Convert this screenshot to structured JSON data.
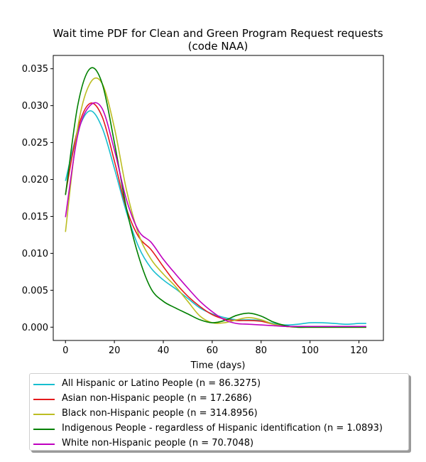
{
  "chart_data": {
    "type": "line",
    "title": "Wait time PDF for Clean and Green Program Request  requests\n(code NAA)",
    "xlabel": "Time (days)",
    "ylabel": "",
    "xlim": [
      -5,
      130
    ],
    "ylim": [
      -0.0018,
      0.0368
    ],
    "x_ticks": [
      0,
      20,
      40,
      60,
      80,
      100,
      120
    ],
    "y_ticks": [
      0.0,
      0.005,
      0.01,
      0.015,
      0.02,
      0.025,
      0.03,
      0.035
    ],
    "y_tick_labels": [
      "0.000",
      "0.005",
      "0.010",
      "0.015",
      "0.020",
      "0.025",
      "0.030",
      "0.035"
    ],
    "grid": false,
    "legend_position": "below",
    "series": [
      {
        "name": "All Hispanic or Latino People (n = 86.3275)",
        "color": "#17becf",
        "x": [
          0,
          5,
          10,
          15,
          20,
          25,
          30,
          35,
          40,
          45,
          50,
          55,
          60,
          65,
          70,
          75,
          80,
          85,
          90,
          95,
          100,
          105,
          110,
          115,
          120,
          123
        ],
        "y": [
          0.0198,
          0.0265,
          0.0293,
          0.027,
          0.0215,
          0.0155,
          0.0108,
          0.008,
          0.0064,
          0.0052,
          0.0039,
          0.0026,
          0.0018,
          0.0013,
          0.001,
          0.001,
          0.0009,
          0.0005,
          0.0003,
          0.0004,
          0.0006,
          0.0006,
          0.0005,
          0.0004,
          0.0005,
          0.0005
        ]
      },
      {
        "name": "Asian non-Hispanic people (n = 17.2686)",
        "color": "#e41a1c",
        "x": [
          0,
          5,
          10,
          15,
          20,
          25,
          30,
          35,
          40,
          45,
          50,
          55,
          60,
          65,
          70,
          75,
          80,
          85,
          90,
          95,
          100,
          105,
          110,
          115,
          120,
          123
        ],
        "y": [
          0.018,
          0.0268,
          0.0303,
          0.0285,
          0.0225,
          0.016,
          0.0122,
          0.0105,
          0.0082,
          0.006,
          0.0042,
          0.0028,
          0.0017,
          0.0011,
          0.0009,
          0.0009,
          0.0008,
          0.0004,
          0.0001,
          0.0,
          0.0,
          0.0,
          0.0,
          0.0,
          0.0,
          0.0
        ]
      },
      {
        "name": "Black non-Hispanic people (n = 314.8956)",
        "color": "#bcbd22",
        "x": [
          0,
          5,
          10,
          15,
          20,
          25,
          30,
          35,
          40,
          45,
          50,
          55,
          60,
          65,
          70,
          75,
          80,
          85,
          90,
          95,
          100,
          105,
          110,
          115,
          120,
          123
        ],
        "y": [
          0.0129,
          0.027,
          0.033,
          0.033,
          0.027,
          0.0185,
          0.0125,
          0.0092,
          0.0072,
          0.0055,
          0.0035,
          0.0015,
          0.0006,
          0.0006,
          0.001,
          0.0013,
          0.001,
          0.0004,
          0.0001,
          0.0,
          0.0,
          0.0,
          0.0,
          0.0,
          0.0,
          0.0
        ]
      },
      {
        "name": "Indigenous People - regardless of Hispanic identification (n = 1.0893)",
        "color": "#008000",
        "x": [
          0,
          5,
          10,
          15,
          20,
          25,
          30,
          35,
          40,
          45,
          50,
          55,
          60,
          65,
          70,
          75,
          80,
          85,
          90,
          95,
          100,
          105,
          110,
          115,
          120,
          123
        ],
        "y": [
          0.0179,
          0.03,
          0.035,
          0.033,
          0.025,
          0.016,
          0.0095,
          0.0052,
          0.0035,
          0.0026,
          0.0018,
          0.001,
          0.0006,
          0.0009,
          0.0016,
          0.0019,
          0.0015,
          0.0007,
          0.0002,
          0.0,
          0.0,
          0.0,
          0.0,
          0.0,
          0.0,
          0.0
        ]
      },
      {
        "name": "White non-Hispanic people (n = 70.7048)",
        "color": "#bf00bf",
        "x": [
          0,
          5,
          10,
          15,
          20,
          25,
          30,
          35,
          40,
          45,
          50,
          55,
          60,
          65,
          70,
          75,
          80,
          85,
          90,
          95,
          100,
          105,
          110,
          115,
          120,
          123
        ],
        "y": [
          0.0149,
          0.026,
          0.03,
          0.0296,
          0.024,
          0.0172,
          0.013,
          0.0115,
          0.0092,
          0.0072,
          0.0053,
          0.0035,
          0.0021,
          0.001,
          0.0005,
          0.0004,
          0.0003,
          0.0002,
          0.0001,
          0.0001,
          0.0001,
          0.0001,
          0.0001,
          0.0001,
          0.0001,
          0.0001
        ]
      }
    ]
  }
}
